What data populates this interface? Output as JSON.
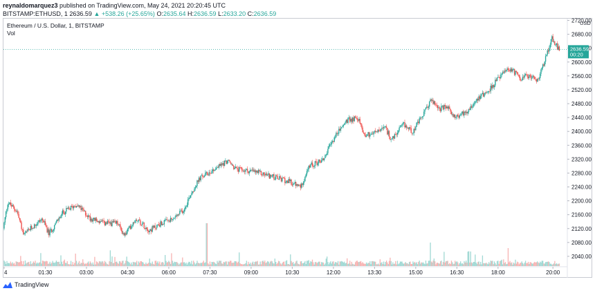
{
  "header": {
    "author": "reynaldomarquez3",
    "published": "published on TradingView.com, May 24, 2021 20:20:45 UTC",
    "symbol": "BITSTAMP:ETHUSD, 1",
    "last": "2636.59",
    "change_arrow": "▲",
    "change": "+538.26 (+25.65%)",
    "o_label": "O:",
    "o": "2635.64",
    "h_label": "H:",
    "h": "2636.59",
    "l_label": "L:",
    "l": "2633.20",
    "c_label": "C:",
    "c": "2636.59"
  },
  "legend": {
    "title": "Ethereum / U.S. Dollar, 1, BITSTAMP",
    "vol": "Vol"
  },
  "price_tag": {
    "price": "2636.59",
    "countdown": "00:20"
  },
  "footer": {
    "brand": "TradingView"
  },
  "colors": {
    "up": "#26a69a",
    "down": "#ef5350",
    "up_vol": "#9fd8d3",
    "down_vol": "#f7b2b1",
    "accent": "#26a69a"
  },
  "chart_data": {
    "type": "candlestick",
    "currency_label": "USD",
    "ylim": [
      2010,
      2725
    ],
    "y_ticks": [
      2040,
      2080,
      2120,
      2160,
      2200,
      2240,
      2280,
      2320,
      2360,
      2400,
      2440,
      2480,
      2520,
      2560,
      2600,
      2640,
      2680,
      2720
    ],
    "y_tick_labels": [
      "2040.00",
      "2080.00",
      "2120.00",
      "2160.00",
      "2200.00",
      "2240.00",
      "2280.00",
      "2320.00",
      "2360.00",
      "2400.00",
      "2440.00",
      "2480.00",
      "2520.00",
      "2560.00",
      "2600.00",
      "2640.00",
      "2680.00",
      "2720.00"
    ],
    "x_ticks": [
      "4",
      "01:30",
      "03:00",
      "04:30",
      "06:00",
      "07:30",
      "09:00",
      "10:30",
      "12:00",
      "13:30",
      "15:00",
      "16:30",
      "18:00",
      "20:00"
    ],
    "x_tick_minutes": [
      0,
      90,
      180,
      270,
      360,
      450,
      540,
      630,
      720,
      810,
      900,
      990,
      1080,
      1200
    ],
    "last_price": 2636.59,
    "anchors_minute_price": [
      [
        0,
        2120
      ],
      [
        10,
        2195
      ],
      [
        30,
        2170
      ],
      [
        45,
        2100
      ],
      [
        60,
        2120
      ],
      [
        85,
        2148
      ],
      [
        100,
        2105
      ],
      [
        130,
        2165
      ],
      [
        160,
        2190
      ],
      [
        190,
        2150
      ],
      [
        220,
        2135
      ],
      [
        250,
        2135
      ],
      [
        265,
        2100
      ],
      [
        290,
        2150
      ],
      [
        320,
        2115
      ],
      [
        345,
        2135
      ],
      [
        370,
        2145
      ],
      [
        395,
        2175
      ],
      [
        410,
        2220
      ],
      [
        430,
        2265
      ],
      [
        460,
        2290
      ],
      [
        490,
        2315
      ],
      [
        510,
        2290
      ],
      [
        545,
        2285
      ],
      [
        575,
        2275
      ],
      [
        600,
        2265
      ],
      [
        625,
        2255
      ],
      [
        650,
        2240
      ],
      [
        670,
        2300
      ],
      [
        700,
        2320
      ],
      [
        725,
        2385
      ],
      [
        750,
        2430
      ],
      [
        775,
        2440
      ],
      [
        790,
        2390
      ],
      [
        810,
        2395
      ],
      [
        835,
        2410
      ],
      [
        850,
        2375
      ],
      [
        875,
        2420
      ],
      [
        895,
        2400
      ],
      [
        915,
        2440
      ],
      [
        935,
        2490
      ],
      [
        955,
        2465
      ],
      [
        970,
        2470
      ],
      [
        990,
        2440
      ],
      [
        1015,
        2460
      ],
      [
        1040,
        2500
      ],
      [
        1060,
        2515
      ],
      [
        1090,
        2565
      ],
      [
        1110,
        2580
      ],
      [
        1130,
        2555
      ],
      [
        1155,
        2560
      ],
      [
        1170,
        2545
      ],
      [
        1185,
        2610
      ],
      [
        1200,
        2670
      ],
      [
        1215,
        2636.59
      ]
    ]
  }
}
